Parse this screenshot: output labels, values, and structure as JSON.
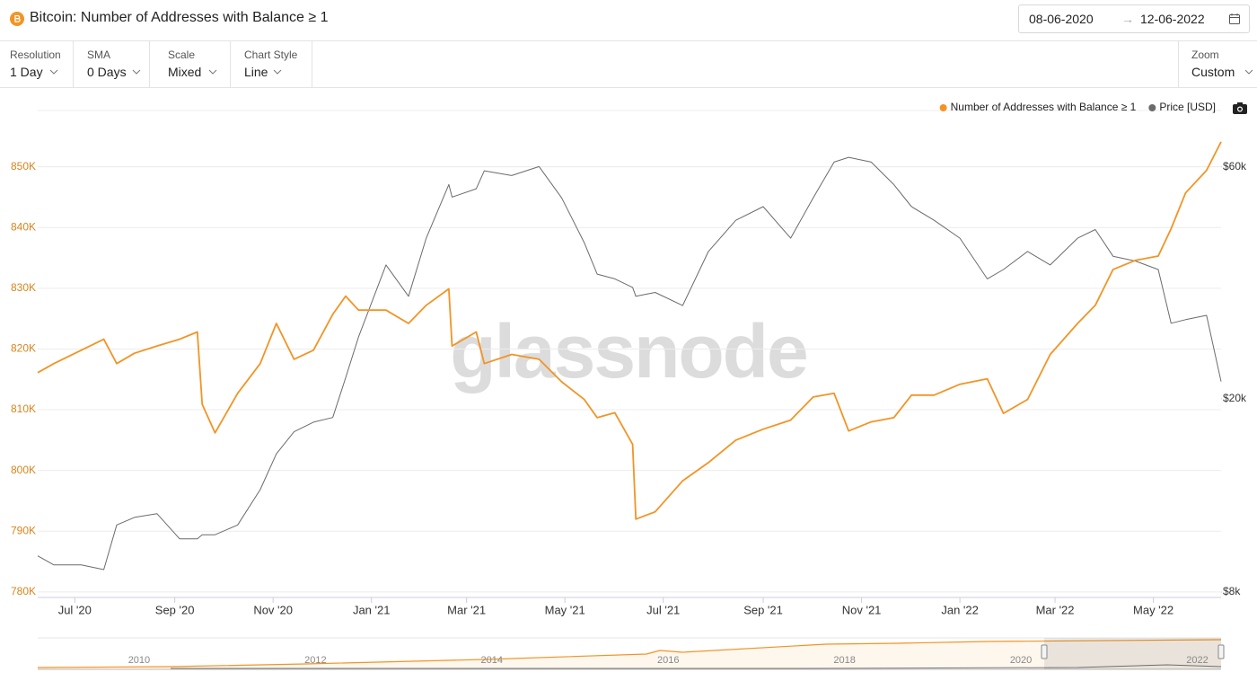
{
  "header": {
    "title": "Bitcoin: Number of Addresses with Balance ≥ 1",
    "date_from": "08-06-2020",
    "date_separator": "→",
    "date_to": "12-06-2022"
  },
  "controls": [
    {
      "label": "Resolution",
      "value": "1 Day"
    },
    {
      "label": "SMA",
      "value": "0 Days"
    },
    {
      "label": "Scale",
      "value": "Mixed"
    },
    {
      "label": "Chart Style",
      "value": "Line"
    }
  ],
  "zoom": {
    "label": "Zoom",
    "value": "Custom"
  },
  "chart_data": {
    "type": "line",
    "watermark": "glassnode",
    "legend": "top-right",
    "grid": true,
    "x": [
      "2020-06-08",
      "2020-06-18",
      "2020-07-05",
      "2020-07-19",
      "2020-07-27",
      "2020-08-07",
      "2020-08-21",
      "2020-09-04",
      "2020-09-15",
      "2020-09-18",
      "2020-09-26",
      "2020-10-10",
      "2020-10-24",
      "2020-11-03",
      "2020-11-14",
      "2020-11-26",
      "2020-12-08",
      "2020-12-16",
      "2020-12-24",
      "2021-01-10",
      "2021-01-24",
      "2021-02-04",
      "2021-02-18",
      "2021-02-20",
      "2021-03-07",
      "2021-03-12",
      "2021-03-29",
      "2021-04-15",
      "2021-04-29",
      "2021-05-13",
      "2021-05-21",
      "2021-06-01",
      "2021-06-12",
      "2021-06-14",
      "2021-06-26",
      "2021-07-13",
      "2021-07-29",
      "2021-08-15",
      "2021-09-01",
      "2021-09-18",
      "2021-10-02",
      "2021-10-15",
      "2021-10-24",
      "2021-11-07",
      "2021-11-21",
      "2021-12-02",
      "2021-12-16",
      "2022-01-01",
      "2022-01-18",
      "2022-01-28",
      "2022-02-12",
      "2022-02-26",
      "2022-03-15",
      "2022-03-26",
      "2022-04-06",
      "2022-04-20",
      "2022-05-04",
      "2022-05-12",
      "2022-05-21",
      "2022-06-03",
      "2022-06-12"
    ],
    "xlim": [
      "2020-06-08",
      "2022-06-12"
    ],
    "xticks": [
      {
        "value": "2020-07-01",
        "label": "Jul '20"
      },
      {
        "value": "2020-09-01",
        "label": "Sep '20"
      },
      {
        "value": "2020-11-01",
        "label": "Nov '20"
      },
      {
        "value": "2021-01-01",
        "label": "Jan '21"
      },
      {
        "value": "2021-03-01",
        "label": "Mar '21"
      },
      {
        "value": "2021-05-01",
        "label": "May '21"
      },
      {
        "value": "2021-07-01",
        "label": "Jul '21"
      },
      {
        "value": "2021-09-01",
        "label": "Sep '21"
      },
      {
        "value": "2021-11-01",
        "label": "Nov '21"
      },
      {
        "value": "2022-01-01",
        "label": "Jan '22"
      },
      {
        "value": "2022-03-01",
        "label": "Mar '22"
      },
      {
        "value": "2022-05-01",
        "label": "May '22"
      }
    ],
    "ylim": [
      779100,
      859700
    ],
    "yticks": [
      {
        "value": 780000,
        "label": "780K"
      },
      {
        "value": 790000,
        "label": "790K"
      },
      {
        "value": 800000,
        "label": "800K"
      },
      {
        "value": 810000,
        "label": "810K"
      },
      {
        "value": 820000,
        "label": "820K"
      },
      {
        "value": 830000,
        "label": "830K"
      },
      {
        "value": 840000,
        "label": "840K"
      },
      {
        "value": 850000,
        "label": "850K"
      }
    ],
    "y2lim": [
      7800,
      79400
    ],
    "y2scale": "log",
    "y2ticks": [
      {
        "value": 8000,
        "label": "$8k"
      },
      {
        "value": 20000,
        "label": "$20k"
      },
      {
        "value": 60000,
        "label": "$60k"
      }
    ],
    "series": [
      {
        "name": "Number of Addresses with Balance ≥ 1",
        "color": "#f29425",
        "axis": "y",
        "values": [
          816100,
          817600,
          819800,
          821600,
          817600,
          819300,
          820500,
          821600,
          822800,
          810900,
          806200,
          812700,
          817600,
          824200,
          818300,
          819800,
          825700,
          828700,
          826400,
          826400,
          824200,
          827200,
          829900,
          820500,
          822800,
          817600,
          819100,
          818300,
          814600,
          811700,
          808700,
          809500,
          804300,
          792000,
          793200,
          798300,
          801300,
          805000,
          806800,
          808300,
          812100,
          812700,
          806500,
          808000,
          808700,
          812400,
          812400,
          814200,
          815100,
          809400,
          811700,
          819100,
          824200,
          827200,
          833100,
          834600,
          835300,
          839800,
          845700,
          849400,
          854100
        ]
      },
      {
        "name": "Price [USD]",
        "color": "#6b6b6b",
        "axis": "y2",
        "values": [
          9500,
          9100,
          9100,
          8900,
          11000,
          11400,
          11600,
          10300,
          10300,
          10500,
          10500,
          11000,
          13000,
          15400,
          17100,
          17900,
          18300,
          22100,
          26800,
          37700,
          32500,
          42800,
          55200,
          52000,
          54100,
          58900,
          57600,
          60100,
          51800,
          41900,
          36100,
          35300,
          33900,
          32500,
          33100,
          31100,
          40200,
          46600,
          49700,
          42800,
          51800,
          61400,
          62800,
          61400,
          55200,
          49700,
          46600,
          42800,
          35300,
          36900,
          40200,
          37700,
          42800,
          44600,
          39300,
          38400,
          36900,
          28600,
          29100,
          29700,
          21700
        ]
      }
    ],
    "navigator": {
      "xlim": [
        2008.85,
        2022.27
      ],
      "xticks": [
        2010,
        2012,
        2014,
        2016,
        2018,
        2020,
        2022
      ]
    }
  }
}
